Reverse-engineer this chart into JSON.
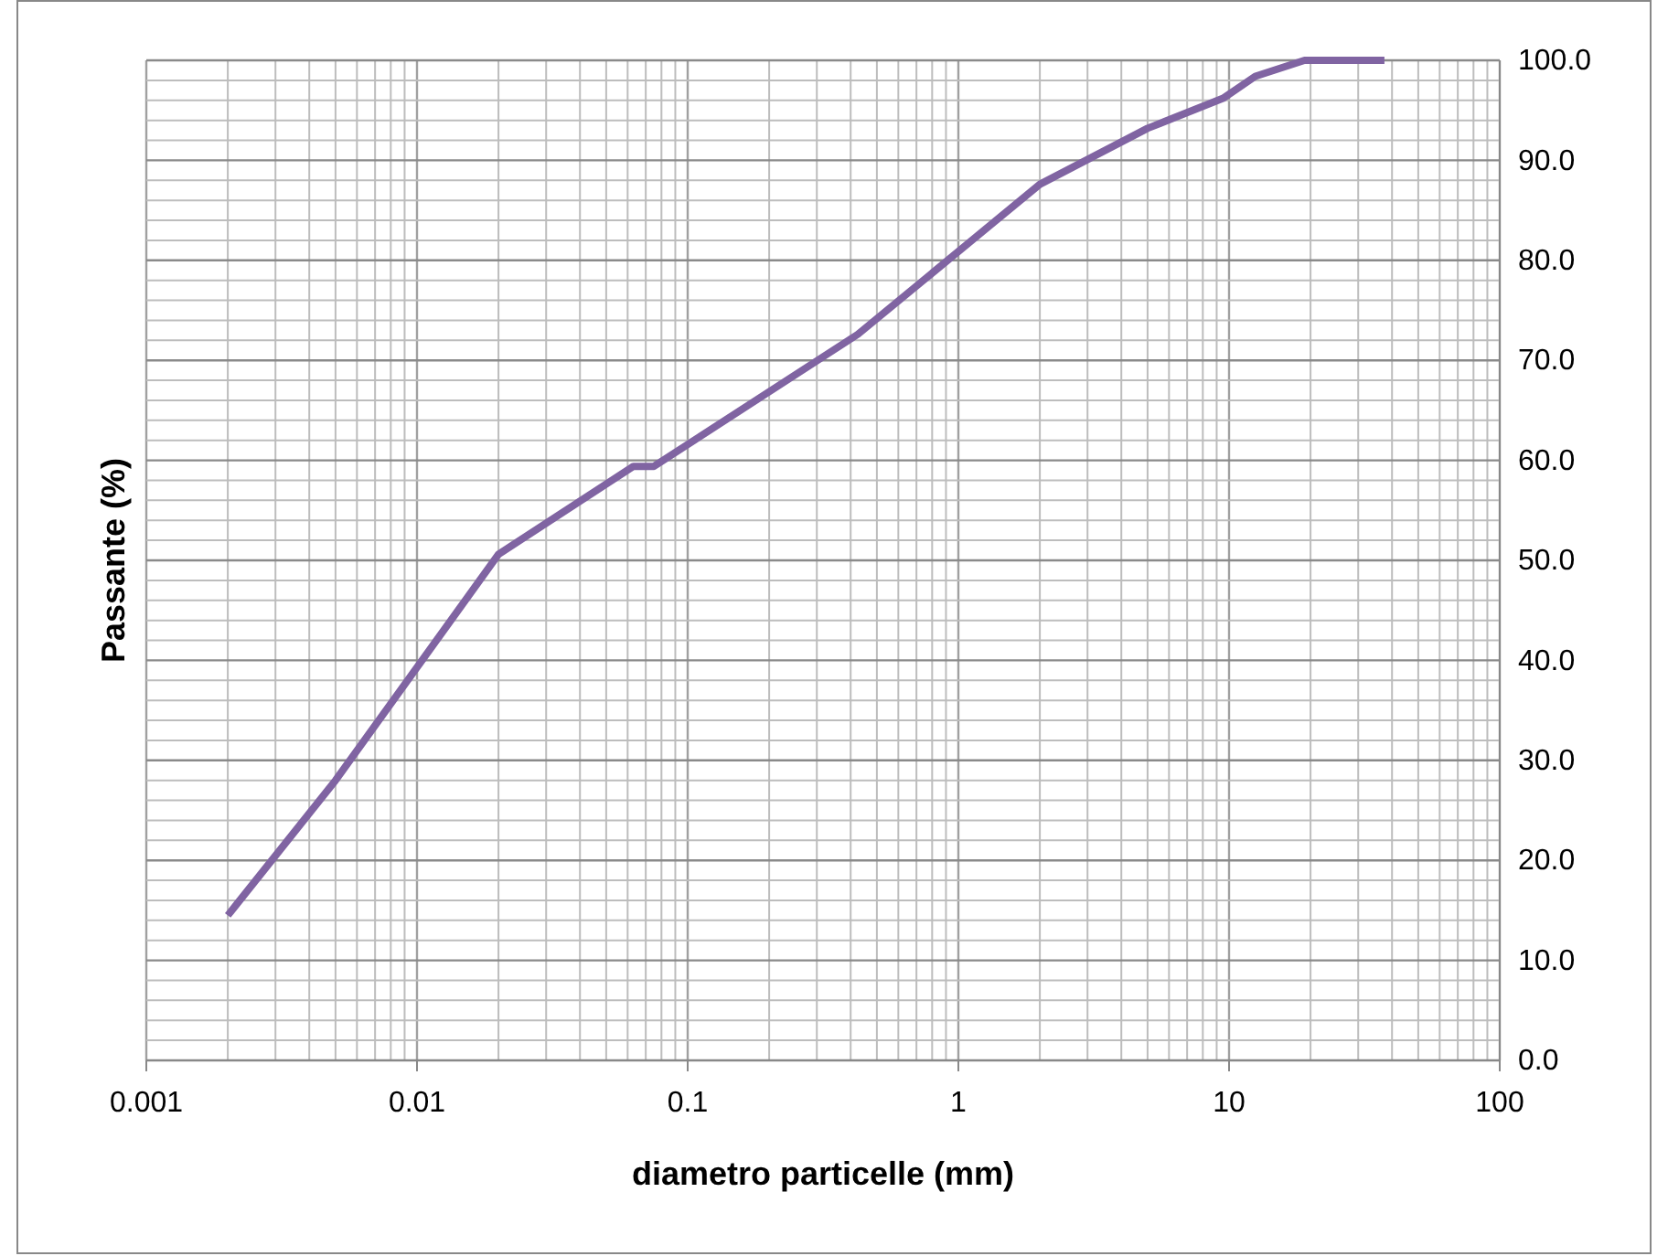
{
  "chart_data": {
    "type": "line",
    "xlabel": "diametro particelle (mm)",
    "ylabel": "Passante (%)",
    "log": "x",
    "grid": true,
    "marker": "none",
    "line_style": "solid",
    "xlim": [
      0.001,
      100
    ],
    "xticks": [
      0.001,
      0.01,
      0.1,
      1,
      10,
      100
    ],
    "ylim": [
      0,
      100
    ],
    "yticks": [
      {
        "value": 0,
        "label": "0.0"
      },
      {
        "value": 10,
        "label": "10.0"
      },
      {
        "value": 20,
        "label": "20.0"
      },
      {
        "value": 30,
        "label": "30.0"
      },
      {
        "value": 40,
        "label": "40.0"
      },
      {
        "value": 50,
        "label": "50.0"
      },
      {
        "value": 60,
        "label": "60.0"
      },
      {
        "value": 70,
        "label": "70.0"
      },
      {
        "value": 80,
        "label": "80.0"
      },
      {
        "value": 90,
        "label": "90.0"
      },
      {
        "value": 100,
        "label": "100.0"
      }
    ],
    "x": [
      0.002,
      0.005,
      0.02,
      0.063,
      0.075,
      0.425,
      2,
      5,
      9.5,
      12.5,
      19,
      37.5
    ],
    "series": [
      {
        "color": "#8064a2",
        "values": [
          14.5,
          28,
          50.6,
          59.4,
          59.4,
          72.6,
          87.6,
          93.2,
          96.2,
          98.4,
          100,
          100
        ]
      }
    ]
  }
}
